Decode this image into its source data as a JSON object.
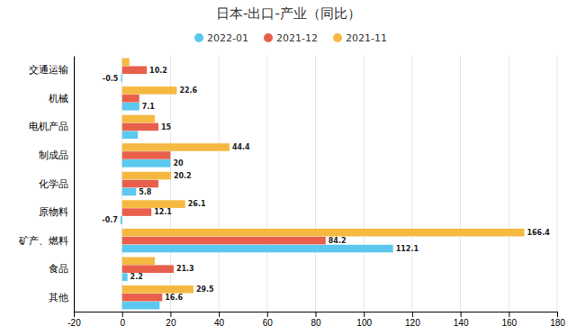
{
  "chart_data": {
    "type": "bar",
    "orientation": "horizontal",
    "title": "日本-出口-产业（同比）",
    "categories": [
      "交通运输",
      "机械",
      "电机产品",
      "制成品",
      "化学品",
      "原物料",
      "矿产、燃料",
      "食品",
      "其他"
    ],
    "series": [
      {
        "name": "2022-01",
        "color": "#5BC8EF",
        "values": [
          -0.5,
          7.1,
          6.5,
          20.0,
          5.8,
          -0.7,
          112.1,
          2.2,
          15.5
        ],
        "value_labels": [
          "-0.5",
          "7.1",
          null,
          "20",
          "5.8",
          "-0.7",
          "112.1",
          "2.2",
          null
        ]
      },
      {
        "name": "2021-12",
        "color": "#E8604C",
        "values": [
          10.2,
          7.1,
          15.0,
          20.0,
          15.0,
          12.1,
          84.2,
          21.3,
          16.6
        ],
        "value_labels": [
          "10.2",
          null,
          "15",
          null,
          null,
          "12.1",
          "84.2",
          "21.3",
          "16.6"
        ]
      },
      {
        "name": "2021-11",
        "color": "#F5B942",
        "values": [
          3.0,
          22.6,
          13.5,
          44.4,
          20.2,
          26.1,
          166.4,
          13.5,
          29.5
        ],
        "value_labels": [
          null,
          "22.6",
          null,
          "44.4",
          "20.2",
          "26.1",
          "166.4",
          null,
          "29.5"
        ]
      }
    ],
    "xlim": [
      -20,
      180
    ],
    "xticks": [
      -20,
      0,
      20,
      40,
      60,
      80,
      100,
      120,
      140,
      160,
      180
    ],
    "grid": true,
    "legend": "top",
    "data_labels": true
  }
}
